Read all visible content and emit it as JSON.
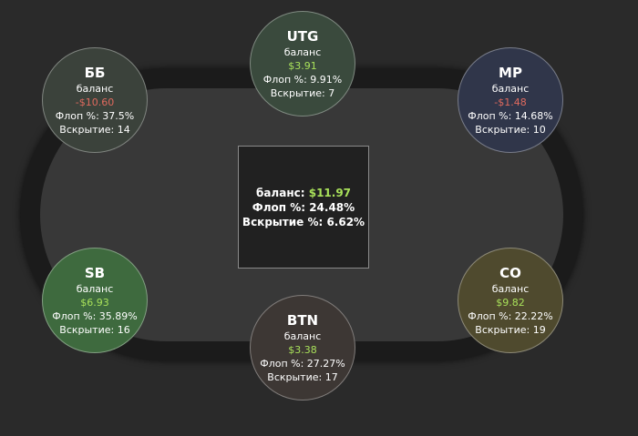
{
  "center": {
    "balance_label": "баланс:",
    "balance": "$11.97",
    "balance_color": "#a8e05a",
    "flop": "Флоп %: 24.48%",
    "showdown": "Вскрытие %: 6.62%"
  },
  "seats": [
    {
      "name": "UTG",
      "balance_label": "баланс",
      "balance": "$3.91",
      "balance_color": "#a8e05a",
      "flop": "Флоп %: 9.91%",
      "showdown": "Вскрытие: 7",
      "color": "#3a4a3d"
    },
    {
      "name": "ББ",
      "balance_label": "баланс",
      "balance": "-$10.60",
      "balance_color": "#e06a5e",
      "flop": "Флоп %: 37.5%",
      "showdown": "Вскрытие: 14",
      "color": "#3b423b"
    },
    {
      "name": "MP",
      "balance_label": "баланс",
      "balance": "-$1.48",
      "balance_color": "#e06a5e",
      "flop": "Флоп %: 14.68%",
      "showdown": "Вскрытие: 10",
      "color": "#30364a"
    },
    {
      "name": "SB",
      "balance_label": "баланс",
      "balance": "$6.93",
      "balance_color": "#a8e05a",
      "flop": "Флоп %: 35.89%",
      "showdown": "Вскрытие: 16",
      "color": "#3e6a3e"
    },
    {
      "name": "CO",
      "balance_label": "баланс",
      "balance": "$9.82",
      "balance_color": "#a8e05a",
      "flop": "Флоп %: 22.22%",
      "showdown": "Вскрытие: 19",
      "color": "#4f4a2e"
    },
    {
      "name": "BTN",
      "balance_label": "баланс",
      "balance": "$3.38",
      "balance_color": "#a8e05a",
      "flop": "Флоп %: 27.27%",
      "showdown": "Вскрытие: 17",
      "color": "#3d3734"
    }
  ]
}
